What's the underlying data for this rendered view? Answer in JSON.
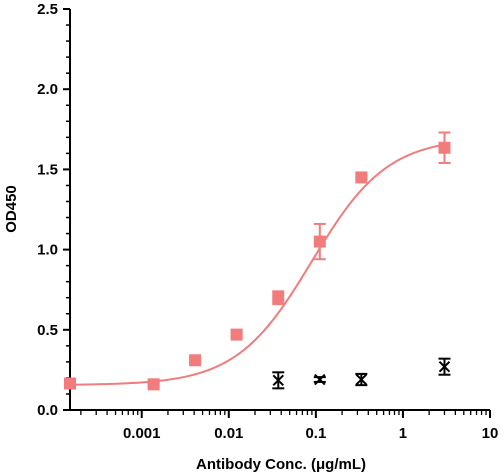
{
  "chart_data": {
    "type": "scatter",
    "xlabel": "Antibody Conc. (μg/mL)",
    "ylabel": "OD450",
    "x_scale": "log",
    "xlim": [
      0.00015,
      10
    ],
    "ylim": [
      0,
      2.5
    ],
    "x_ticks": [
      {
        "value": 0.001,
        "label": "0.001"
      },
      {
        "value": 0.01,
        "label": "0.01"
      },
      {
        "value": 0.1,
        "label": "0.1"
      },
      {
        "value": 1,
        "label": "1"
      },
      {
        "value": 10,
        "label": "10"
      }
    ],
    "y_ticks": [
      {
        "value": 0.0,
        "label": "0.0"
      },
      {
        "value": 0.5,
        "label": "0.5"
      },
      {
        "value": 1.0,
        "label": "1.0"
      },
      {
        "value": 1.5,
        "label": "1.5"
      },
      {
        "value": 2.0,
        "label": "2.0"
      },
      {
        "value": 2.5,
        "label": "2.5"
      }
    ],
    "grid": false,
    "series": [
      {
        "marker": "square",
        "color": "#f27c7c",
        "points": [
          {
            "x": 0.00015,
            "y": 0.165,
            "err": 0.01
          },
          {
            "x": 0.00137,
            "y": 0.16,
            "err": 0.01
          },
          {
            "x": 0.0041,
            "y": 0.31,
            "err": 0.015
          },
          {
            "x": 0.0123,
            "y": 0.47,
            "err": 0.015
          },
          {
            "x": 0.037,
            "y": 0.7,
            "err": 0.04
          },
          {
            "x": 0.111,
            "y": 1.05,
            "err": 0.11
          },
          {
            "x": 0.333,
            "y": 1.45,
            "err": 0.01
          },
          {
            "x": 3.0,
            "y": 1.635,
            "err": 0.095
          }
        ],
        "fit_curve": {
          "bottom": 0.155,
          "top": 1.7,
          "ec50": 0.09,
          "hill": 1.0
        }
      },
      {
        "marker": "x",
        "color": "#000000",
        "points": [
          {
            "x": 0.037,
            "y": 0.185,
            "err": 0.05
          },
          {
            "x": 0.111,
            "y": 0.19,
            "err": 0.015
          },
          {
            "x": 0.333,
            "y": 0.19,
            "err": 0.035
          },
          {
            "x": 3.0,
            "y": 0.27,
            "err": 0.05
          }
        ]
      }
    ]
  }
}
